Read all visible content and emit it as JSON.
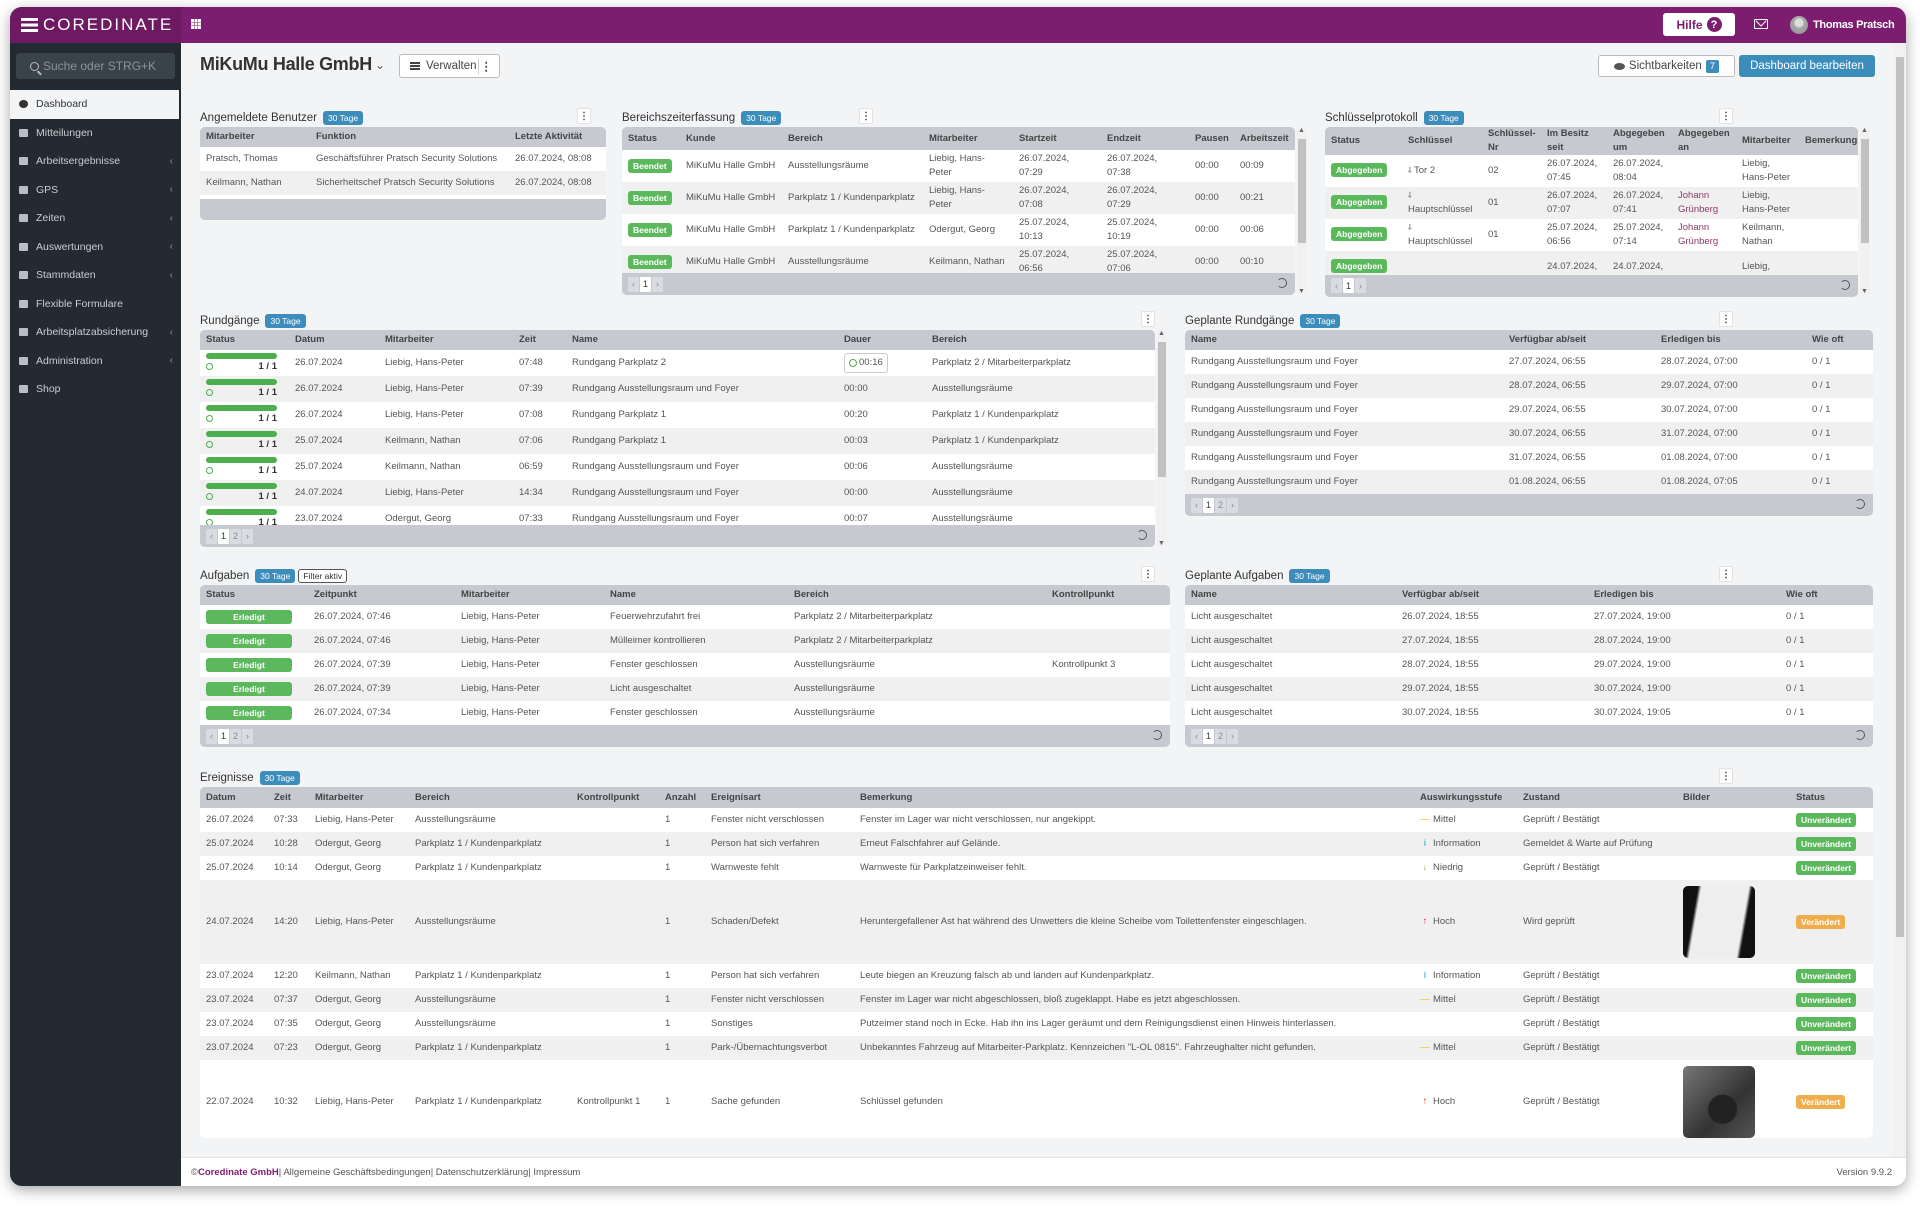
{
  "header": {
    "logo": "COREDINATE",
    "help_label": "Hilfe",
    "help_icon": "?",
    "user_name": "Thomas Pratsch"
  },
  "sidebar": {
    "search_placeholder": "Suche oder STRG+K",
    "items": [
      {
        "label": "Dashboard",
        "active": true,
        "icon": "dashboard-icon",
        "expandable": false
      },
      {
        "label": "Mitteilungen",
        "icon": "envelope-icon",
        "expandable": false
      },
      {
        "label": "Arbeitsergebnisse",
        "icon": "monitor-icon",
        "expandable": true
      },
      {
        "label": "GPS",
        "icon": "map-pin-icon",
        "expandable": true
      },
      {
        "label": "Zeiten",
        "icon": "clock-icon",
        "expandable": true
      },
      {
        "label": "Auswertungen",
        "icon": "report-icon",
        "expandable": true
      },
      {
        "label": "Stammdaten",
        "icon": "book-icon",
        "expandable": true
      },
      {
        "label": "Flexible Formulare",
        "icon": "form-icon",
        "expandable": false
      },
      {
        "label": "Arbeitsplatzabsicherung",
        "icon": "lifebuoy-icon",
        "expandable": true
      },
      {
        "label": "Administration",
        "icon": "cogs-icon",
        "expandable": true
      },
      {
        "label": "Shop",
        "icon": "cart-icon",
        "expandable": false
      }
    ]
  },
  "page": {
    "title": "MiKuMu Halle GmbH",
    "manage_label": "Verwalten",
    "visibility_label": "Sichtbarkeiten",
    "visibility_count": "7",
    "edit_label": "Dashboard bearbeiten"
  },
  "colors": {
    "accent": "#3c8dbc",
    "brand": "#7d1d6f",
    "success": "#5cb85c",
    "warning": "#f0ad4e"
  },
  "status_colors": {
    "Beendet": "#5cb85c",
    "Abgegeben": "#5cb85c",
    "Erledigt": "#5cb85c",
    "Unverändert": "#5cb85c",
    "Verändert": "#f0ad4e"
  },
  "level_icons": {
    "Mittel": "minus-icon",
    "Information": "info-icon",
    "Niedrig": "arrow-down-icon",
    "Hoch": "arrow-up-icon"
  },
  "panels": {
    "angemeldete": {
      "title": "Angemeldete Benutzer",
      "badge": "30 Tage",
      "columns": [
        "Mitarbeiter",
        "Funktion",
        "Letzte Aktivität"
      ],
      "rows": [
        [
          "Pratsch, Thomas",
          "Geschäftsführer Pratsch Security Solutions",
          "26.07.2024, 08:08"
        ],
        [
          "Keilmann, Nathan",
          "Sicherheitschef Pratsch Security Solutions",
          "26.07.2024, 08:08"
        ]
      ]
    },
    "bereich": {
      "title": "Bereichszeiterfassung",
      "badge": "30 Tage",
      "pages": [
        "1"
      ],
      "columns": [
        "Status",
        "Kunde",
        "Bereich",
        "Mitarbeiter",
        "Startzeit",
        "Endzeit",
        "Pausen",
        "Arbeitszeit"
      ],
      "rows": [
        [
          "Beendet",
          "MiKuMu Halle GmbH",
          "Ausstellungsräume",
          "Liebig, Hans-Peter",
          "26.07.2024, 07:29",
          "26.07.2024, 07:38",
          "00:00",
          "00:09"
        ],
        [
          "Beendet",
          "MiKuMu Halle GmbH",
          "Parkplatz 1 / Kundenparkplatz",
          "Liebig, Hans-Peter",
          "26.07.2024, 07:08",
          "26.07.2024, 07:29",
          "00:00",
          "00:21"
        ],
        [
          "Beendet",
          "MiKuMu Halle GmbH",
          "Parkplatz 1 / Kundenparkplatz",
          "Odergut, Georg",
          "25.07.2024, 10:13",
          "25.07.2024, 10:19",
          "00:00",
          "00:06"
        ],
        [
          "Beendet",
          "MiKuMu Halle GmbH",
          "Ausstellungsräume",
          "Keilmann, Nathan",
          "25.07.2024, 06:56",
          "25.07.2024, 07:06",
          "00:00",
          "00:10"
        ]
      ]
    },
    "schluessel": {
      "title": "Schlüsselprotokoll",
      "badge": "30 Tage",
      "pages": [
        "1"
      ],
      "columns": [
        "Status",
        "Schlüssel",
        "Schlüssel-Nr",
        "Im Besitz seit",
        "Abgegeben um",
        "Abgegeben an",
        "Mitarbeiter",
        "Bemerkung"
      ],
      "rows": [
        [
          "Abgegeben",
          "Tor 2",
          "02",
          "26.07.2024, 07:45",
          "26.07.2024, 08:04",
          "",
          "Liebig, Hans-Peter",
          ""
        ],
        [
          "Abgegeben",
          "Hauptschlüssel",
          "01",
          "26.07.2024, 07:07",
          "26.07.2024, 07:41",
          "Johann Grünberg",
          "Liebig, Hans-Peter",
          ""
        ],
        [
          "Abgegeben",
          "Hauptschlüssel",
          "01",
          "25.07.2024, 06:56",
          "25.07.2024, 07:14",
          "Johann Grünberg",
          "Keilmann, Nathan",
          ""
        ],
        [
          "Abgegeben",
          "",
          "",
          "24.07.2024,",
          "24.07.2024,",
          "",
          "Liebig,",
          ""
        ]
      ]
    },
    "rundgaenge": {
      "title": "Rundgänge",
      "badge": "30 Tage",
      "pages": [
        "1",
        "2"
      ],
      "columns": [
        "Status",
        "Datum",
        "Mitarbeiter",
        "Zeit",
        "Name",
        "Dauer",
        "Bereich"
      ],
      "rows": [
        [
          {
            "value": "1 / 1",
            "progress": 100
          },
          "26.07.2024",
          "Liebig, Hans-Peter",
          "07:48",
          "Rundgang Parkplatz 2",
          {
            "value": "00:16",
            "running": true
          },
          "Parkplatz 2 / Mitarbeiterparkplatz"
        ],
        [
          {
            "value": "1 / 1",
            "progress": 100
          },
          "26.07.2024",
          "Liebig, Hans-Peter",
          "07:39",
          "Rundgang Ausstellungsraum und Foyer",
          "00:00",
          "Ausstellungsräume"
        ],
        [
          {
            "value": "1 / 1",
            "progress": 100
          },
          "26.07.2024",
          "Liebig, Hans-Peter",
          "07:08",
          "Rundgang Parkplatz 1",
          "00:20",
          "Parkplatz 1 / Kundenparkplatz"
        ],
        [
          {
            "value": "1 / 1",
            "progress": 100
          },
          "25.07.2024",
          "Keilmann, Nathan",
          "07:06",
          "Rundgang Parkplatz 1",
          "00:03",
          "Parkplatz 1 / Kundenparkplatz"
        ],
        [
          {
            "value": "1 / 1",
            "progress": 100
          },
          "25.07.2024",
          "Keilmann, Nathan",
          "06:59",
          "Rundgang Ausstellungsraum und Foyer",
          "00:06",
          "Ausstellungsräume"
        ],
        [
          {
            "value": "1 / 1",
            "progress": 100
          },
          "24.07.2024",
          "Liebig, Hans-Peter",
          "14:34",
          "Rundgang Ausstellungsraum und Foyer",
          "00:00",
          "Ausstellungsräume"
        ],
        [
          {
            "value": "1 / 1",
            "progress": 100
          },
          "23.07.2024",
          "Odergut, Georg",
          "07:33",
          "Rundgang Ausstellungsraum und Foyer",
          "00:07",
          "Ausstellungsräume"
        ]
      ]
    },
    "geplante_rundgaenge": {
      "title": "Geplante Rundgänge",
      "badge": "30 Tage",
      "pages": [
        "1",
        "2"
      ],
      "columns": [
        "Name",
        "Verfügbar ab/seit",
        "Erledigen bis",
        "Wie oft"
      ],
      "rows": [
        [
          "Rundgang Ausstellungsraum und Foyer",
          "27.07.2024, 06:55",
          "28.07.2024, 07:00",
          "0 / 1"
        ],
        [
          "Rundgang Ausstellungsraum und Foyer",
          "28.07.2024, 06:55",
          "29.07.2024, 07:00",
          "0 / 1"
        ],
        [
          "Rundgang Ausstellungsraum und Foyer",
          "29.07.2024, 06:55",
          "30.07.2024, 07:00",
          "0 / 1"
        ],
        [
          "Rundgang Ausstellungsraum und Foyer",
          "30.07.2024, 06:55",
          "31.07.2024, 07:00",
          "0 / 1"
        ],
        [
          "Rundgang Ausstellungsraum und Foyer",
          "31.07.2024, 06:55",
          "01.08.2024, 07:00",
          "0 / 1"
        ],
        [
          "Rundgang Ausstellungsraum und Foyer",
          "01.08.2024, 06:55",
          "01.08.2024, 07:05",
          "0 / 1"
        ]
      ]
    },
    "aufgaben": {
      "title": "Aufgaben",
      "badge": "30 Tage",
      "filter_badge": "Filter aktiv",
      "pages": [
        "1",
        "2"
      ],
      "columns": [
        "Status",
        "Zeitpunkt",
        "Mitarbeiter",
        "Name",
        "Bereich",
        "Kontrollpunkt"
      ],
      "rows": [
        [
          "Erledigt",
          "26.07.2024, 07:46",
          "Liebig, Hans-Peter",
          "Feuerwehrzufahrt frei",
          "Parkplatz 2 / Mitarbeiterparkplatz",
          ""
        ],
        [
          "Erledigt",
          "26.07.2024, 07:46",
          "Liebig, Hans-Peter",
          "Mülleimer kontrollieren",
          "Parkplatz 2 / Mitarbeiterparkplatz",
          ""
        ],
        [
          "Erledigt",
          "26.07.2024, 07:39",
          "Liebig, Hans-Peter",
          "Fenster geschlossen",
          "Ausstellungsräume",
          "Kontrollpunkt 3"
        ],
        [
          "Erledigt",
          "26.07.2024, 07:39",
          "Liebig, Hans-Peter",
          "Licht ausgeschaltet",
          "Ausstellungsräume",
          ""
        ],
        [
          "Erledigt",
          "26.07.2024, 07:34",
          "Liebig, Hans-Peter",
          "Fenster geschlossen",
          "Ausstellungsräume",
          ""
        ]
      ]
    },
    "geplante_aufgaben": {
      "title": "Geplante Aufgaben",
      "badge": "30 Tage",
      "pages": [
        "1",
        "2"
      ],
      "columns": [
        "Name",
        "Verfügbar ab/seit",
        "Erledigen bis",
        "Wie oft"
      ],
      "rows": [
        [
          "Licht ausgeschaltet",
          "26.07.2024, 18:55",
          "27.07.2024, 19:00",
          "0 / 1"
        ],
        [
          "Licht ausgeschaltet",
          "27.07.2024, 18:55",
          "28.07.2024, 19:00",
          "0 / 1"
        ],
        [
          "Licht ausgeschaltet",
          "28.07.2024, 18:55",
          "29.07.2024, 19:00",
          "0 / 1"
        ],
        [
          "Licht ausgeschaltet",
          "29.07.2024, 18:55",
          "30.07.2024, 19:00",
          "0 / 1"
        ],
        [
          "Licht ausgeschaltet",
          "30.07.2024, 18:55",
          "30.07.2024, 19:05",
          "0 / 1"
        ]
      ]
    },
    "ereignisse": {
      "title": "Ereignisse",
      "badge": "30 Tage",
      "columns": [
        "Datum",
        "Zeit",
        "Mitarbeiter",
        "Bereich",
        "Kontrollpunkt",
        "Anzahl",
        "Ereignisart",
        "Bemerkung",
        "Auswirkungsstufe",
        "Zustand",
        "Bilder",
        "Status"
      ],
      "rows": [
        [
          "26.07.2024",
          "07:33",
          "Liebig, Hans-Peter",
          "Ausstellungsräume",
          "",
          "1",
          "Fenster nicht verschlossen",
          "Fenster im Lager war nicht verschlossen, nur angekippt.",
          "Mittel",
          "Geprüft / Bestätigt",
          "",
          "Unverändert"
        ],
        [
          "25.07.2024",
          "10:28",
          "Odergut, Georg",
          "Parkplatz 1 / Kundenparkplatz",
          "",
          "1",
          "Person hat sich verfahren",
          "Erneut Falschfahrer auf Gelände.",
          "Information",
          "Gemeldet & Warte auf Prüfung",
          "",
          "Unverändert"
        ],
        [
          "25.07.2024",
          "10:14",
          "Odergut, Georg",
          "Parkplatz 1 / Kundenparkplatz",
          "",
          "1",
          "Warnweste fehlt",
          "Warnweste für Parkplatzeinweiser fehlt.",
          "Niedrig",
          "Geprüft / Bestätigt",
          "",
          "Unverändert"
        ],
        [
          "24.07.2024",
          "14:20",
          "Liebig, Hans-Peter",
          "Ausstellungsräume",
          "",
          "1",
          "Schaden/Defekt",
          "Heruntergefallener Ast hat während des Unwetters die kleine Scheibe vom Toilettenfenster eingeschlagen.",
          "Hoch",
          "Wird geprüft",
          "broken-window-photo",
          "Verändert"
        ],
        [
          "23.07.2024",
          "12:20",
          "Keilmann, Nathan",
          "Parkplatz 1 / Kundenparkplatz",
          "",
          "1",
          "Person hat sich verfahren",
          "Leute biegen an Kreuzung falsch ab und landen auf Kundenparkplatz.",
          "Information",
          "Geprüft / Bestätigt",
          "",
          "Unverändert"
        ],
        [
          "23.07.2024",
          "07:37",
          "Odergut, Georg",
          "Ausstellungsräume",
          "",
          "1",
          "Fenster nicht verschlossen",
          "Fenster im Lager war nicht abgeschlossen, bloß zugeklappt. Habe es jetzt abgeschlossen.",
          "Mittel",
          "Geprüft / Bestätigt",
          "",
          "Unverändert"
        ],
        [
          "23.07.2024",
          "07:35",
          "Odergut, Georg",
          "Ausstellungsräume",
          "",
          "1",
          "Sonstiges",
          "Putzeimer stand noch in Ecke. Hab ihn ins Lager geräumt und dem Reinigungsdienst einen Hinweis hinterlassen.",
          "",
          "Geprüft / Bestätigt",
          "",
          "Unverändert"
        ],
        [
          "23.07.2024",
          "07:23",
          "Odergut, Georg",
          "Parkplatz 1 / Kundenparkplatz",
          "",
          "1",
          "Park-/Übernachtungsverbot",
          "Unbekanntes Fahrzeug auf Mitarbeiter-Parkplatz. Kennzeichen \"L-OL 0815\". Fahrzeughalter nicht gefunden.",
          "Mittel",
          "Geprüft / Bestätigt",
          "",
          "Unverändert"
        ],
        [
          "22.07.2024",
          "10:32",
          "Liebig, Hans-Peter",
          "Parkplatz 1 / Kundenparkplatz",
          "Kontrollpunkt 1",
          "1",
          "Sache gefunden",
          "Schlüssel gefunden",
          "Hoch",
          "Geprüft / Bestätigt",
          "keys-photo",
          "Verändert"
        ]
      ]
    }
  },
  "footer": {
    "copyright": "© ",
    "company": "Coredinate GmbH",
    "links": [
      " | Allgemeine Geschäftsbedingungen",
      " | Datenschutzerklärung",
      " | Impressum"
    ],
    "version": "Version 9.9.2"
  }
}
